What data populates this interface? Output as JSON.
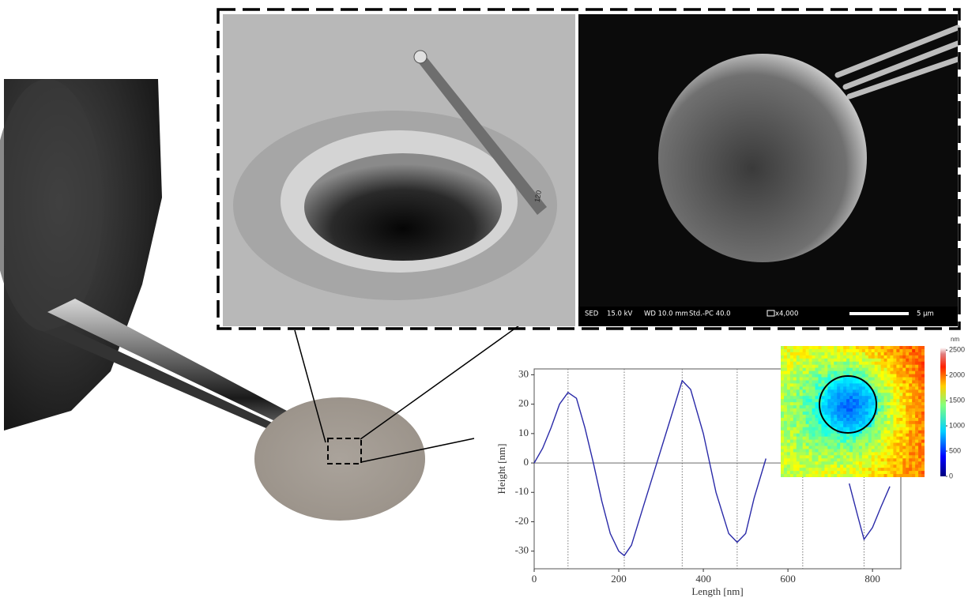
{
  "sem_info": {
    "detector": "SED",
    "voltage": "15.0 kV",
    "wd": "WD 10.0 mm",
    "mode": "Std.-PC 40.0",
    "magnification": "x4,000",
    "scale": "5 µm"
  },
  "tip_label": "120",
  "chart_data": {
    "type": "line",
    "xlabel": "Length [nm]",
    "ylabel": "Height [nm]",
    "x": [
      0,
      20,
      40,
      60,
      80,
      100,
      120,
      140,
      160,
      180,
      200,
      213,
      230,
      260,
      290,
      320,
      350,
      370,
      400,
      430,
      460,
      480,
      500,
      520,
      548,
      640,
      745,
      765,
      780,
      800,
      820,
      841
    ],
    "series": [
      {
        "color": "#2a2aa8",
        "values": [
          0,
          5,
          12,
          20,
          24,
          22,
          12,
          0,
          -13,
          -24,
          -30,
          -31.5,
          -28,
          -14,
          0,
          14,
          28,
          25,
          10,
          -10,
          -24,
          -27,
          -24,
          -12,
          1.5,
          null,
          -7,
          -18,
          -26,
          -22,
          -15,
          -8
        ]
      }
    ],
    "vlines": [
      80,
      213,
      350,
      480,
      635,
      780
    ],
    "xlim": [
      0,
      867
    ],
    "ylim": [
      -36,
      32
    ],
    "xticks": [
      0,
      200,
      400,
      600,
      800
    ],
    "yticks": [
      -30,
      -20,
      -10,
      0,
      10,
      20,
      30
    ],
    "colorbar": {
      "label": "nm",
      "lim": [
        0,
        2550
      ],
      "ticks": [
        0,
        500,
        1000,
        1500,
        2000,
        2500
      ]
    }
  }
}
